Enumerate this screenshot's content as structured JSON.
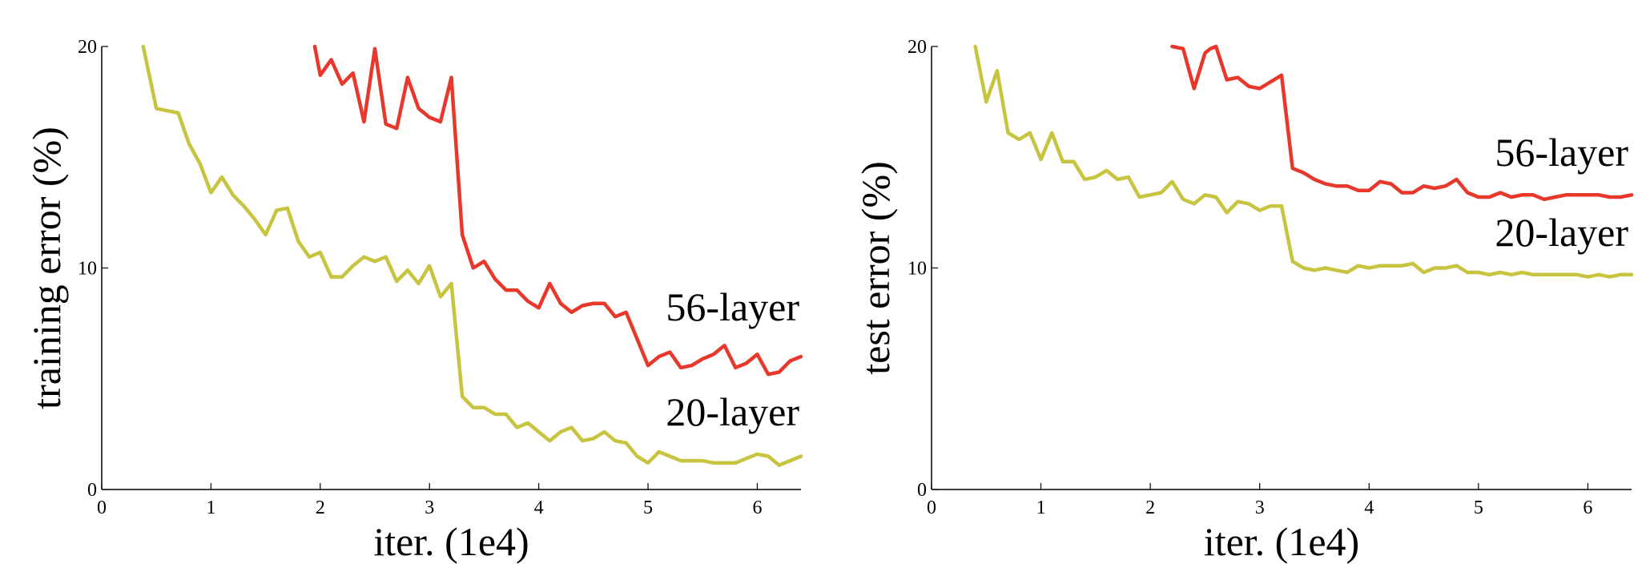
{
  "chart_data": [
    {
      "type": "line",
      "xlabel": "iter. (1e4)",
      "ylabel": "training error (%)",
      "xlim": [
        0,
        6.4
      ],
      "ylim": [
        0,
        20
      ],
      "xticks": [
        "0",
        "1",
        "2",
        "3",
        "4",
        "5",
        "6"
      ],
      "yticks": [
        "0",
        "10",
        "20"
      ],
      "grid": false,
      "legend": "inline labels next to curves",
      "series": [
        {
          "name": "56-layer",
          "color": "#e8382c",
          "x": [
            1.95,
            2.0,
            2.1,
            2.2,
            2.3,
            2.4,
            2.5,
            2.6,
            2.7,
            2.8,
            2.9,
            3.0,
            3.1,
            3.2,
            3.3,
            3.4,
            3.5,
            3.6,
            3.7,
            3.8,
            3.9,
            4.0,
            4.1,
            4.2,
            4.3,
            4.4,
            4.5,
            4.6,
            4.7,
            4.8,
            4.9,
            5.0,
            5.1,
            5.2,
            5.3,
            5.4,
            5.5,
            5.6,
            5.7,
            5.8,
            5.9,
            6.0,
            6.1,
            6.2,
            6.3,
            6.4
          ],
          "values": [
            20.0,
            18.7,
            19.4,
            18.3,
            18.8,
            16.6,
            19.9,
            16.5,
            16.3,
            18.6,
            17.2,
            16.8,
            16.6,
            18.6,
            11.5,
            10.0,
            10.3,
            9.5,
            9.0,
            9.0,
            8.5,
            8.2,
            9.3,
            8.4,
            8.0,
            8.3,
            8.4,
            8.4,
            7.8,
            8.0,
            6.8,
            5.6,
            6.0,
            6.2,
            5.5,
            5.6,
            5.9,
            6.1,
            6.5,
            5.5,
            5.7,
            6.1,
            5.2,
            5.3,
            5.8,
            6.0
          ]
        },
        {
          "name": "20-layer",
          "color": "#c7c43f",
          "x": [
            0.38,
            0.5,
            0.6,
            0.7,
            0.8,
            0.9,
            1.0,
            1.1,
            1.2,
            1.3,
            1.4,
            1.5,
            1.6,
            1.7,
            1.8,
            1.9,
            2.0,
            2.1,
            2.2,
            2.3,
            2.4,
            2.5,
            2.6,
            2.7,
            2.8,
            2.9,
            3.0,
            3.1,
            3.2,
            3.3,
            3.4,
            3.5,
            3.6,
            3.7,
            3.8,
            3.9,
            4.0,
            4.1,
            4.2,
            4.3,
            4.4,
            4.5,
            4.6,
            4.7,
            4.8,
            4.9,
            5.0,
            5.1,
            5.2,
            5.3,
            5.4,
            5.5,
            5.6,
            5.7,
            5.8,
            5.9,
            6.0,
            6.1,
            6.2,
            6.3,
            6.4
          ],
          "values": [
            20.0,
            17.2,
            17.1,
            17.0,
            15.6,
            14.7,
            13.4,
            14.1,
            13.3,
            12.8,
            12.2,
            11.5,
            12.6,
            12.7,
            11.2,
            10.5,
            10.7,
            9.6,
            9.6,
            10.1,
            10.5,
            10.3,
            10.5,
            9.4,
            9.9,
            9.3,
            10.1,
            8.7,
            9.3,
            4.2,
            3.7,
            3.7,
            3.4,
            3.4,
            2.8,
            3.0,
            2.6,
            2.2,
            2.6,
            2.8,
            2.2,
            2.3,
            2.6,
            2.2,
            2.1,
            1.5,
            1.2,
            1.7,
            1.5,
            1.3,
            1.3,
            1.3,
            1.2,
            1.2,
            1.2,
            1.4,
            1.6,
            1.5,
            1.1,
            1.3,
            1.5
          ]
        }
      ]
    },
    {
      "type": "line",
      "xlabel": "iter. (1e4)",
      "ylabel": "test error (%)",
      "xlim": [
        0,
        6.4
      ],
      "ylim": [
        0,
        20
      ],
      "xticks": [
        "0",
        "1",
        "2",
        "3",
        "4",
        "5",
        "6"
      ],
      "yticks": [
        "0",
        "10",
        "20"
      ],
      "grid": false,
      "legend": "inline labels next to curves",
      "series": [
        {
          "name": "56-layer",
          "color": "#e8382c",
          "x": [
            2.2,
            2.3,
            2.4,
            2.5,
            2.55,
            2.6,
            2.7,
            2.8,
            2.9,
            3.0,
            3.1,
            3.2,
            3.3,
            3.4,
            3.5,
            3.6,
            3.7,
            3.8,
            3.9,
            4.0,
            4.1,
            4.2,
            4.3,
            4.4,
            4.5,
            4.6,
            4.7,
            4.8,
            4.9,
            5.0,
            5.1,
            5.2,
            5.3,
            5.4,
            5.5,
            5.6,
            5.7,
            5.8,
            5.9,
            6.0,
            6.1,
            6.2,
            6.3,
            6.4
          ],
          "values": [
            20.0,
            19.9,
            18.1,
            19.7,
            19.9,
            20.0,
            18.5,
            18.6,
            18.2,
            18.1,
            18.4,
            18.7,
            14.5,
            14.3,
            14.0,
            13.8,
            13.7,
            13.7,
            13.5,
            13.5,
            13.9,
            13.8,
            13.4,
            13.4,
            13.7,
            13.6,
            13.7,
            14.0,
            13.4,
            13.2,
            13.2,
            13.4,
            13.2,
            13.3,
            13.3,
            13.1,
            13.2,
            13.3,
            13.3,
            13.3,
            13.3,
            13.2,
            13.2,
            13.3
          ]
        },
        {
          "name": "20-layer",
          "color": "#c7c43f",
          "x": [
            0.4,
            0.5,
            0.6,
            0.7,
            0.8,
            0.9,
            1.0,
            1.1,
            1.2,
            1.3,
            1.4,
            1.5,
            1.6,
            1.7,
            1.8,
            1.9,
            2.0,
            2.1,
            2.2,
            2.3,
            2.4,
            2.5,
            2.6,
            2.7,
            2.8,
            2.9,
            3.0,
            3.1,
            3.2,
            3.3,
            3.4,
            3.5,
            3.6,
            3.7,
            3.8,
            3.9,
            4.0,
            4.1,
            4.2,
            4.3,
            4.4,
            4.5,
            4.6,
            4.7,
            4.8,
            4.9,
            5.0,
            5.1,
            5.2,
            5.3,
            5.4,
            5.5,
            5.6,
            5.7,
            5.8,
            5.9,
            6.0,
            6.1,
            6.2,
            6.3,
            6.4
          ],
          "values": [
            20.0,
            17.5,
            18.9,
            16.1,
            15.8,
            16.1,
            14.9,
            16.1,
            14.8,
            14.8,
            14.0,
            14.1,
            14.4,
            14.0,
            14.1,
            13.2,
            13.3,
            13.4,
            13.9,
            13.1,
            12.9,
            13.3,
            13.2,
            12.5,
            13.0,
            12.9,
            12.6,
            12.8,
            12.8,
            10.3,
            10.0,
            9.9,
            10.0,
            9.9,
            9.8,
            10.1,
            10.0,
            10.1,
            10.1,
            10.1,
            10.2,
            9.8,
            10.0,
            10.0,
            10.1,
            9.8,
            9.8,
            9.7,
            9.8,
            9.7,
            9.8,
            9.7,
            9.7,
            9.7,
            9.7,
            9.7,
            9.6,
            9.7,
            9.6,
            9.7,
            9.7
          ]
        }
      ]
    }
  ]
}
